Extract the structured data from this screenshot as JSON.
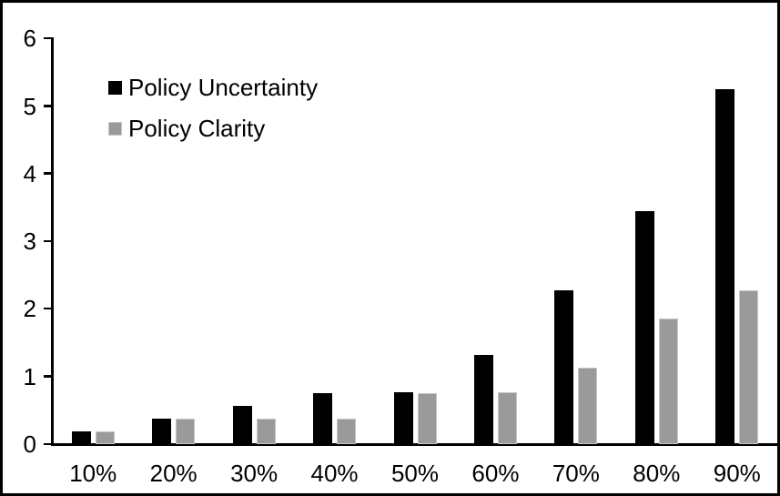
{
  "chart_data": {
    "type": "bar",
    "title": "",
    "xlabel": "",
    "ylabel": "",
    "categories": [
      "10%",
      "20%",
      "30%",
      "40%",
      "50%",
      "60%",
      "70%",
      "80%",
      "90%"
    ],
    "series": [
      {
        "name": "Policy Uncertainty",
        "color": "#000000",
        "values": [
          0.19,
          0.38,
          0.57,
          0.76,
          0.77,
          1.32,
          2.28,
          3.45,
          5.25
        ]
      },
      {
        "name": "Policy Clarity",
        "color": "#9A9A9A",
        "values": [
          0.19,
          0.38,
          0.38,
          0.38,
          0.76,
          0.77,
          1.13,
          1.86,
          2.27
        ]
      }
    ],
    "ylim": [
      0,
      6
    ],
    "yticks": [
      0,
      1,
      2,
      3,
      4,
      5,
      6
    ],
    "grid": false,
    "legend_position": "top-left-inside",
    "axis_color": "#000000",
    "background_color": "#FFFFFF",
    "frame_border_color": "#000000"
  }
}
